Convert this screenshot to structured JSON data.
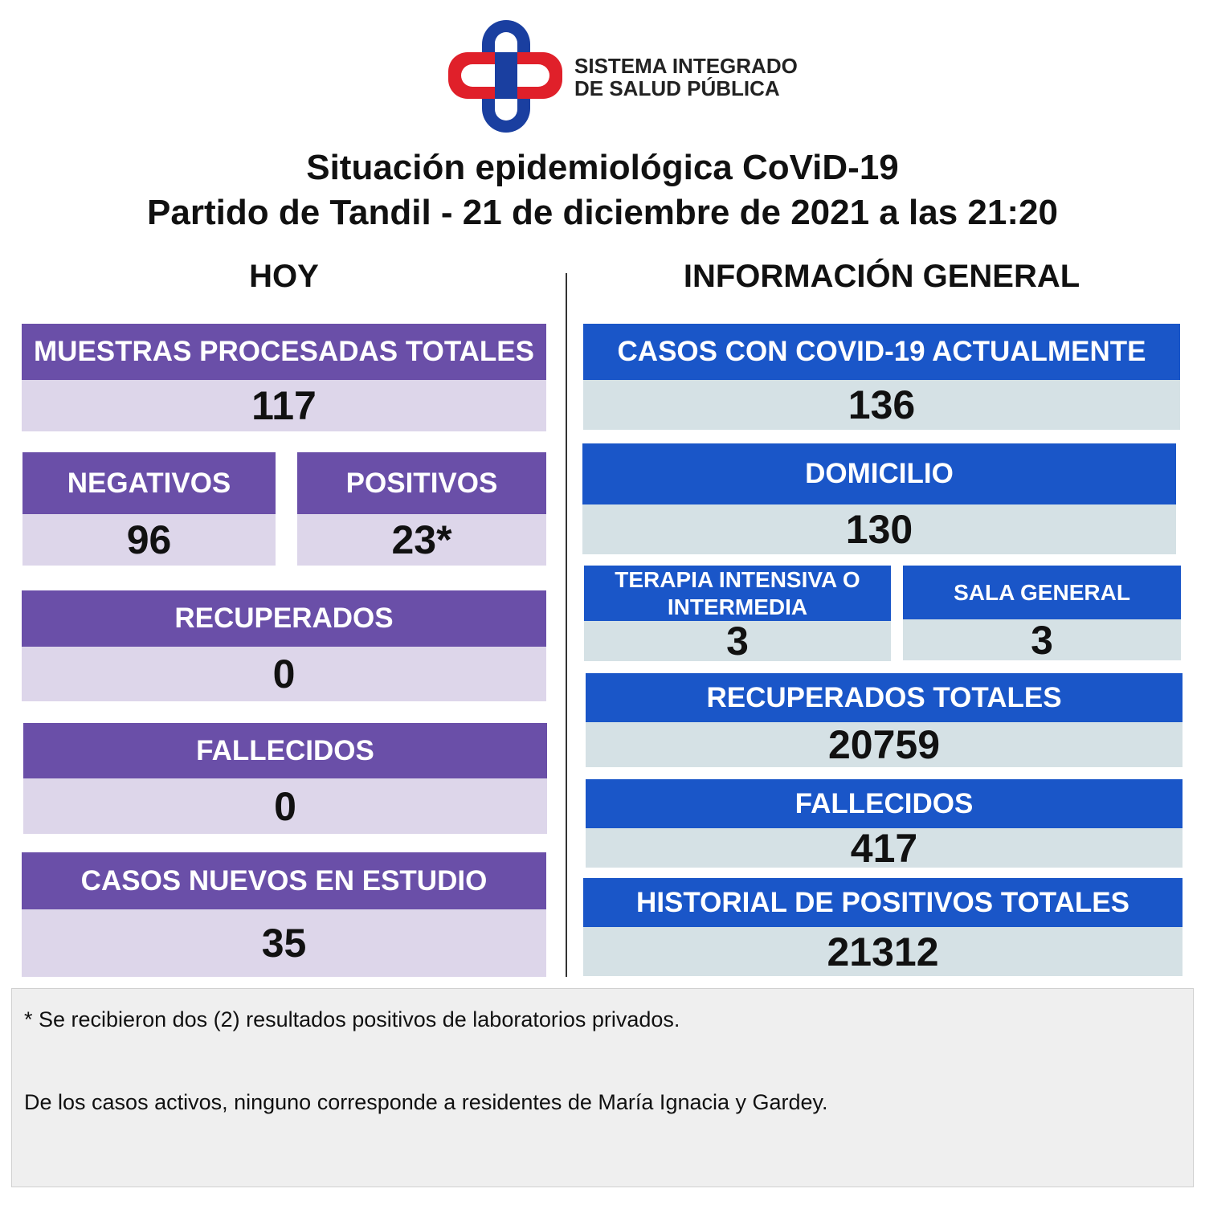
{
  "header": {
    "logo_line1": "SISTEMA INTEGRADO",
    "logo_line2": "DE SALUD PÚBLICA",
    "title_line1": "Situación epidemiológica CoViD-19",
    "title_line2": "Partido de Tandil - 21 de diciembre de 2021 a las 21:20"
  },
  "hoy": {
    "heading": "HOY",
    "panels": [
      {
        "label": "MUESTRAS PROCESADAS TOTALES",
        "value": 117
      },
      {
        "label": "NEGATIVOS",
        "value": 96
      },
      {
        "label": "POSITIVOS",
        "value": "23*"
      },
      {
        "label": "RECUPERADOS",
        "value": 0
      },
      {
        "label": "FALLECIDOS",
        "value": 0
      },
      {
        "label": "CASOS NUEVOS EN ESTUDIO",
        "value": 35
      }
    ]
  },
  "general": {
    "heading": "INFORMACIÓN GENERAL",
    "panels": [
      {
        "label": "CASOS CON COVID-19 ACTUALMENTE",
        "value": 136
      },
      {
        "label": "DOMICILIO",
        "value": 130
      },
      {
        "label": "TERAPIA INTENSIVA O INTERMEDIA",
        "value": 3
      },
      {
        "label": "SALA GENERAL",
        "value": 3
      },
      {
        "label": "RECUPERADOS TOTALES",
        "value": 20759
      },
      {
        "label": "FALLECIDOS",
        "value": 417
      },
      {
        "label": "HISTORIAL DE POSITIVOS TOTALES",
        "value": 21312
      }
    ]
  },
  "notes": [
    "* Se recibieron dos (2) resultados positivos de laboratorios privados.",
    "De los casos activos, ninguno corresponde a residentes de María Ignacia y Gardey."
  ]
}
